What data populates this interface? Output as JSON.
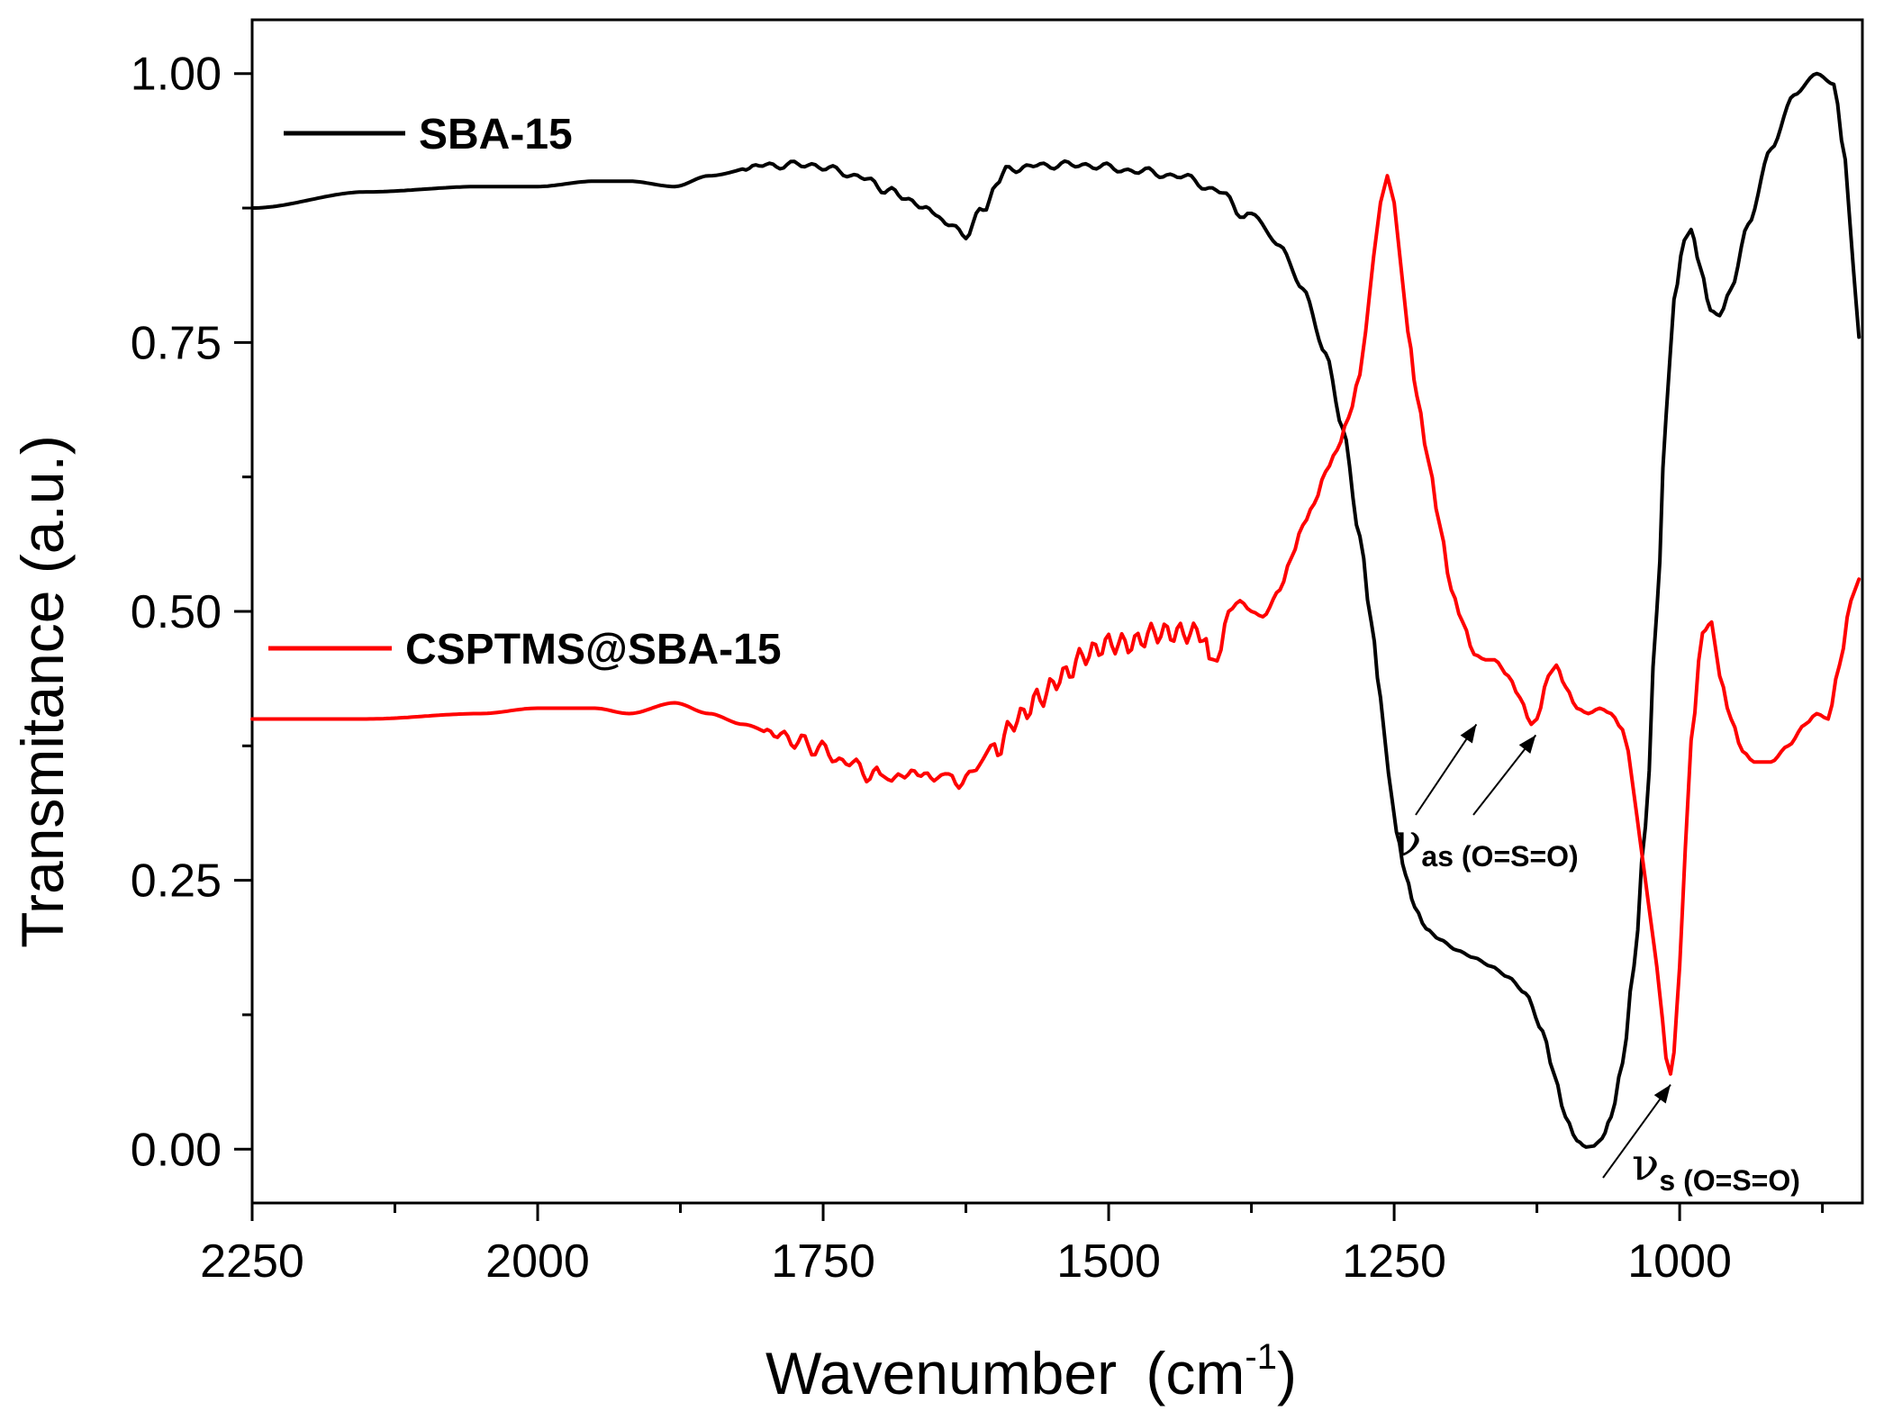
{
  "chart_data": {
    "type": "line",
    "title": "",
    "xlabel": "Wavenumber",
    "xlabel_unit_base": "(cm",
    "xlabel_unit_sup": "-1",
    "xlabel_unit_close": ")",
    "ylabel": "Transmitance (a.u.)",
    "xlim": [
      2250,
      840
    ],
    "ylim": [
      -0.05,
      1.05
    ],
    "x_ticks": [
      2250,
      2000,
      1750,
      1500,
      1250,
      1000
    ],
    "x_tick_labels": [
      "2250",
      "2000",
      "1750",
      "1500",
      "1250",
      "1000"
    ],
    "y_ticks": [
      0.0,
      0.25,
      0.5,
      0.75,
      1.0
    ],
    "y_tick_labels": [
      "0.00",
      "0.25",
      "0.50",
      "0.75",
      "1.00"
    ],
    "grid": false,
    "series": [
      {
        "name": "SBA-15",
        "color": "#000000",
        "x": [
          2250,
          2150,
          2050,
          2000,
          1950,
          1920,
          1880,
          1850,
          1800,
          1760,
          1720,
          1690,
          1660,
          1640,
          1625,
          1610,
          1590,
          1560,
          1520,
          1480,
          1440,
          1400,
          1385,
          1375,
          1350,
          1330,
          1310,
          1295,
          1280,
          1270,
          1262,
          1255,
          1248,
          1240,
          1232,
          1222,
          1210,
          1195,
          1180,
          1165,
          1150,
          1135,
          1120,
          1110,
          1100,
          1090,
          1082,
          1075,
          1068,
          1060,
          1050,
          1040,
          1030,
          1020,
          1012,
          1005,
          996,
          990,
          982,
          973,
          965,
          955,
          940,
          920,
          900,
          880,
          865,
          855,
          848,
          843
        ],
        "y": [
          0.875,
          0.89,
          0.895,
          0.895,
          0.9,
          0.9,
          0.895,
          0.905,
          0.915,
          0.915,
          0.905,
          0.89,
          0.875,
          0.86,
          0.85,
          0.875,
          0.91,
          0.915,
          0.915,
          0.91,
          0.905,
          0.89,
          0.87,
          0.87,
          0.84,
          0.8,
          0.74,
          0.67,
          0.57,
          0.49,
          0.42,
          0.35,
          0.295,
          0.255,
          0.225,
          0.205,
          0.195,
          0.185,
          0.178,
          0.17,
          0.16,
          0.145,
          0.11,
          0.07,
          0.03,
          0.008,
          0.002,
          0.003,
          0.01,
          0.03,
          0.08,
          0.17,
          0.3,
          0.5,
          0.68,
          0.79,
          0.845,
          0.855,
          0.82,
          0.78,
          0.775,
          0.8,
          0.86,
          0.93,
          0.98,
          1.0,
          0.99,
          0.92,
          0.82,
          0.755
        ]
      },
      {
        "name": "CSPTMS@SBA-15",
        "color": "#ff0000",
        "x": [
          2250,
          2150,
          2050,
          2000,
          1950,
          1920,
          1880,
          1850,
          1820,
          1790,
          1760,
          1730,
          1700,
          1690,
          1670,
          1650,
          1640,
          1625,
          1610,
          1600,
          1580,
          1560,
          1540,
          1520,
          1500,
          1480,
          1460,
          1440,
          1420,
          1412,
          1405,
          1395,
          1385,
          1375,
          1365,
          1350,
          1340,
          1330,
          1320,
          1310,
          1300,
          1290,
          1280,
          1275,
          1268,
          1262,
          1256,
          1250,
          1244,
          1238,
          1230,
          1220,
          1210,
          1200,
          1190,
          1180,
          1170,
          1162,
          1150,
          1140,
          1130,
          1125,
          1115,
          1108,
          1100,
          1090,
          1080,
          1070,
          1060,
          1050,
          1045,
          1040,
          1035,
          1030,
          1025,
          1020,
          1015,
          1012,
          1008,
          1005,
          1000,
          995,
          990,
          980,
          972,
          965,
          955,
          945,
          935,
          920,
          905,
          890,
          880,
          870,
          860,
          850,
          843
        ],
        "y": [
          0.4,
          0.4,
          0.405,
          0.41,
          0.41,
          0.405,
          0.415,
          0.405,
          0.395,
          0.385,
          0.375,
          0.36,
          0.345,
          0.345,
          0.35,
          0.345,
          0.34,
          0.345,
          0.36,
          0.37,
          0.4,
          0.42,
          0.44,
          0.46,
          0.47,
          0.47,
          0.48,
          0.48,
          0.48,
          0.46,
          0.455,
          0.5,
          0.51,
          0.5,
          0.495,
          0.52,
          0.55,
          0.58,
          0.6,
          0.63,
          0.65,
          0.68,
          0.72,
          0.76,
          0.83,
          0.88,
          0.905,
          0.88,
          0.82,
          0.76,
          0.7,
          0.64,
          0.58,
          0.52,
          0.49,
          0.46,
          0.455,
          0.455,
          0.44,
          0.42,
          0.395,
          0.4,
          0.44,
          0.45,
          0.43,
          0.41,
          0.405,
          0.41,
          0.405,
          0.39,
          0.37,
          0.33,
          0.29,
          0.25,
          0.21,
          0.17,
          0.12,
          0.085,
          0.07,
          0.09,
          0.17,
          0.28,
          0.38,
          0.48,
          0.49,
          0.44,
          0.4,
          0.37,
          0.36,
          0.36,
          0.375,
          0.395,
          0.405,
          0.4,
          0.45,
          0.51,
          0.53
        ]
      }
    ],
    "legend": [
      {
        "label": "SBA-15",
        "color": "#000000"
      },
      {
        "label": "CSPTMS@SBA-15",
        "color": "#ff0000"
      }
    ],
    "annotations": [
      {
        "symbol": "ν",
        "subscript": "as (O=S=O)",
        "arrow_targets": [
          [
            1178,
            0.395
          ],
          [
            1126,
            0.385
          ]
        ]
      },
      {
        "symbol": "ν",
        "subscript": "s (O=S=O)",
        "arrow_targets": [
          [
            1008,
            0.06
          ]
        ]
      }
    ]
  }
}
